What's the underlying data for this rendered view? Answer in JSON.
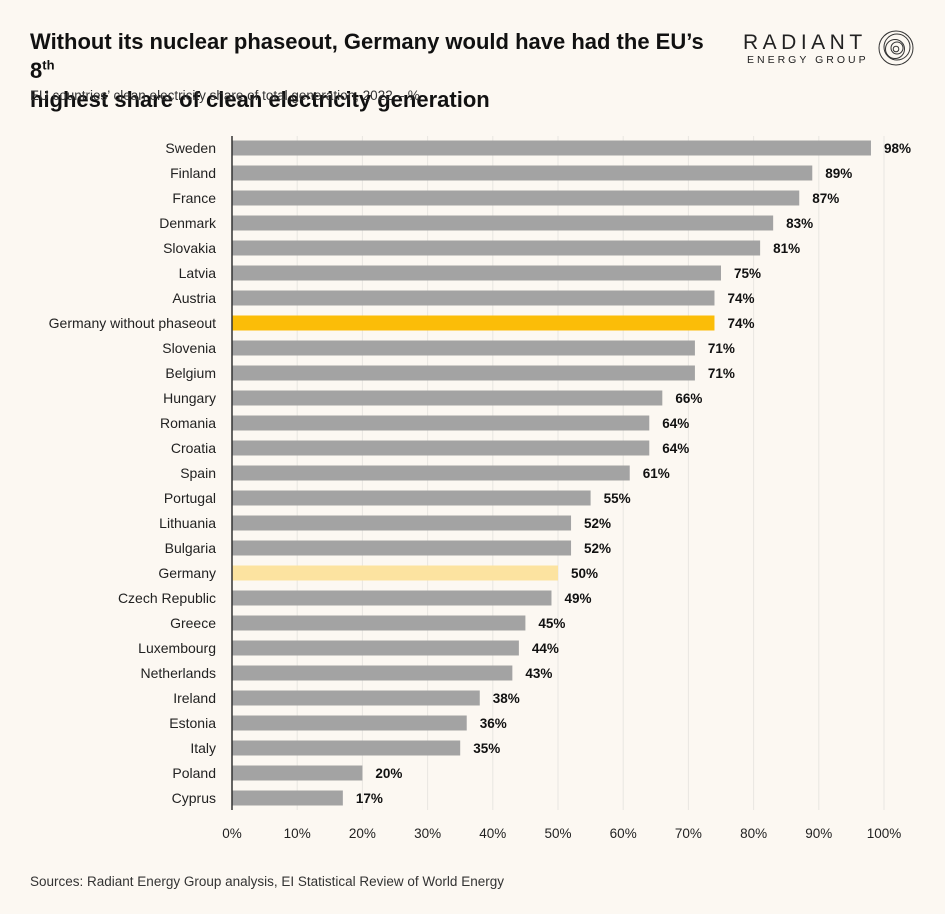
{
  "header": {
    "title_main": "Without its nuclear phaseout, Germany would have had the EU’s 8",
    "title_sup": "th",
    "title_line2": "highest share of clean electricity generation",
    "subtitle": "EU countries’ clean electricity share of total generation, 2022 – %"
  },
  "logo": {
    "word": "RADIANT",
    "sub": "ENERGY GROUP",
    "mark_icon": "concentric-circles-icon"
  },
  "footer": {
    "source": "Sources: Radiant Energy Group analysis, EI Statistical Review of World Energy"
  },
  "colors": {
    "background": "#fcf8f2",
    "bar_default": "#a3a3a3",
    "bar_germany_without_phaseout": "#fbbd08",
    "bar_germany": "#fce3a0",
    "gridline": "#e9e6e1",
    "axis": "#333333"
  },
  "chart_data": {
    "type": "bar",
    "orientation": "horizontal",
    "categories": [
      "Sweden",
      "Finland",
      "France",
      "Denmark",
      "Slovakia",
      "Latvia",
      "Austria",
      "Germany without phaseout",
      "Slovenia",
      "Belgium",
      "Hungary",
      "Romania",
      "Croatia",
      "Spain",
      "Portugal",
      "Lithuania",
      "Bulgaria",
      "Germany",
      "Czech Republic",
      "Greece",
      "Luxembourg",
      "Netherlands",
      "Ireland",
      "Estonia",
      "Italy",
      "Poland",
      "Cyprus"
    ],
    "values": [
      98,
      89,
      87,
      83,
      81,
      75,
      74,
      74,
      71,
      71,
      66,
      64,
      64,
      61,
      55,
      52,
      52,
      50,
      49,
      45,
      44,
      43,
      38,
      36,
      35,
      20,
      17
    ],
    "value_labels": [
      "98%",
      "89%",
      "87%",
      "83%",
      "81%",
      "75%",
      "74%",
      "74%",
      "71%",
      "71%",
      "66%",
      "64%",
      "64%",
      "61%",
      "55%",
      "52%",
      "52%",
      "50%",
      "49%",
      "45%",
      "44%",
      "43%",
      "38%",
      "36%",
      "35%",
      "20%",
      "17%"
    ],
    "highlights": {
      "Germany without phaseout": "#fbbd08",
      "Germany": "#fce3a0"
    },
    "xlim": [
      0,
      100
    ],
    "x_ticks": [
      0,
      10,
      20,
      30,
      40,
      50,
      60,
      70,
      80,
      90,
      100
    ],
    "x_tick_labels": [
      "0%",
      "10%",
      "20%",
      "30%",
      "40%",
      "50%",
      "60%",
      "70%",
      "80%",
      "90%",
      "100%"
    ],
    "grid": true,
    "legend": "none"
  }
}
